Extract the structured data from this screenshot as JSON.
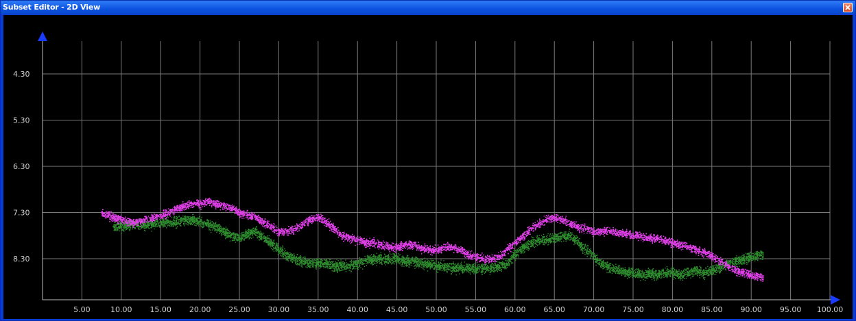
{
  "window": {
    "title": "Subset Editor - 2D View",
    "close_icon": "close-icon"
  },
  "colors": {
    "background": "#000000",
    "grid": "#7a7a7a",
    "axis_arrow": "#1a3cff",
    "series_magenta": "#e040e8",
    "series_green": "#2f8f2f",
    "title_bar": "#0b53e0"
  },
  "chart_data": {
    "type": "scatter",
    "grid": true,
    "x_axis_direction": "right",
    "y_axis_direction": "up",
    "xlim": [
      0,
      100
    ],
    "ylim": [
      9.2,
      3.6
    ],
    "x_ticks": [
      "5.00",
      "10.00",
      "15.00",
      "20.00",
      "25.00",
      "30.00",
      "35.00",
      "40.00",
      "45.00",
      "50.00",
      "55.00",
      "60.00",
      "65.00",
      "70.00",
      "75.00",
      "80.00",
      "85.00",
      "90.00",
      "95.00",
      "100.00"
    ],
    "y_ticks": [
      "4.30",
      "5.30",
      "6.30",
      "7.30",
      "8.30"
    ],
    "series": [
      {
        "color": "#e040e8",
        "x": [
          7.5,
          8,
          9,
          10,
          11,
          12,
          13,
          14,
          15,
          16,
          17,
          18,
          19,
          20,
          21,
          22,
          23,
          24,
          25,
          26,
          27,
          28,
          29,
          30,
          31,
          32,
          33,
          34,
          35,
          36,
          37,
          38,
          39,
          40,
          41,
          42,
          43,
          44,
          45,
          46,
          47,
          48,
          49,
          50,
          51,
          52,
          53,
          54,
          55,
          56,
          57,
          58,
          59,
          60,
          61,
          62,
          63,
          64,
          65,
          66,
          67,
          68,
          69,
          70,
          71,
          72,
          73,
          74,
          75,
          76,
          77,
          78,
          79,
          80,
          81,
          82,
          83,
          84,
          85,
          86,
          87,
          88,
          89,
          90,
          91.5
        ],
        "y": [
          7.3,
          7.35,
          7.4,
          7.45,
          7.5,
          7.5,
          7.45,
          7.4,
          7.35,
          7.3,
          7.2,
          7.15,
          7.1,
          7.1,
          7.05,
          7.1,
          7.15,
          7.2,
          7.3,
          7.35,
          7.4,
          7.5,
          7.6,
          7.7,
          7.7,
          7.65,
          7.55,
          7.45,
          7.4,
          7.5,
          7.65,
          7.8,
          7.85,
          7.9,
          7.95,
          7.95,
          8.0,
          8.05,
          8.05,
          8.0,
          8.0,
          8.05,
          8.1,
          8.1,
          8.05,
          8.05,
          8.1,
          8.2,
          8.25,
          8.3,
          8.3,
          8.25,
          8.1,
          7.95,
          7.8,
          7.65,
          7.55,
          7.45,
          7.4,
          7.45,
          7.55,
          7.6,
          7.65,
          7.7,
          7.7,
          7.7,
          7.75,
          7.75,
          7.8,
          7.8,
          7.85,
          7.85,
          7.9,
          7.95,
          8.0,
          8.05,
          8.1,
          8.15,
          8.25,
          8.35,
          8.45,
          8.55,
          8.6,
          8.65,
          8.7
        ]
      },
      {
        "color": "#2f8f2f",
        "x": [
          9,
          10,
          11,
          12,
          13,
          14,
          15,
          16,
          17,
          18,
          19,
          20,
          21,
          22,
          23,
          24,
          25,
          26,
          27,
          28,
          29,
          30,
          31,
          32,
          33,
          34,
          35,
          36,
          37,
          38,
          39,
          40,
          41,
          42,
          43,
          44,
          45,
          46,
          47,
          48,
          49,
          50,
          51,
          52,
          53,
          54,
          55,
          56,
          57,
          58,
          59,
          60,
          61,
          62,
          63,
          64,
          65,
          66,
          67,
          68,
          69,
          70,
          71,
          72,
          73,
          74,
          75,
          76,
          77,
          78,
          79,
          80,
          81,
          82,
          83,
          84,
          85,
          86,
          87,
          88,
          89,
          90,
          91.5
        ],
        "y": [
          7.6,
          7.6,
          7.55,
          7.55,
          7.55,
          7.55,
          7.5,
          7.5,
          7.5,
          7.45,
          7.45,
          7.5,
          7.55,
          7.6,
          7.7,
          7.8,
          7.85,
          7.75,
          7.7,
          7.85,
          7.95,
          8.1,
          8.2,
          8.3,
          8.35,
          8.4,
          8.4,
          8.4,
          8.45,
          8.45,
          8.45,
          8.4,
          8.35,
          8.3,
          8.3,
          8.3,
          8.3,
          8.35,
          8.35,
          8.4,
          8.4,
          8.45,
          8.45,
          8.5,
          8.5,
          8.5,
          8.5,
          8.5,
          8.5,
          8.45,
          8.4,
          8.2,
          8.05,
          7.95,
          7.9,
          7.9,
          7.85,
          7.8,
          7.8,
          7.95,
          8.1,
          8.25,
          8.4,
          8.5,
          8.55,
          8.6,
          8.6,
          8.65,
          8.6,
          8.65,
          8.6,
          8.6,
          8.65,
          8.6,
          8.55,
          8.6,
          8.55,
          8.5,
          8.4,
          8.35,
          8.3,
          8.25,
          8.2
        ]
      }
    ]
  }
}
